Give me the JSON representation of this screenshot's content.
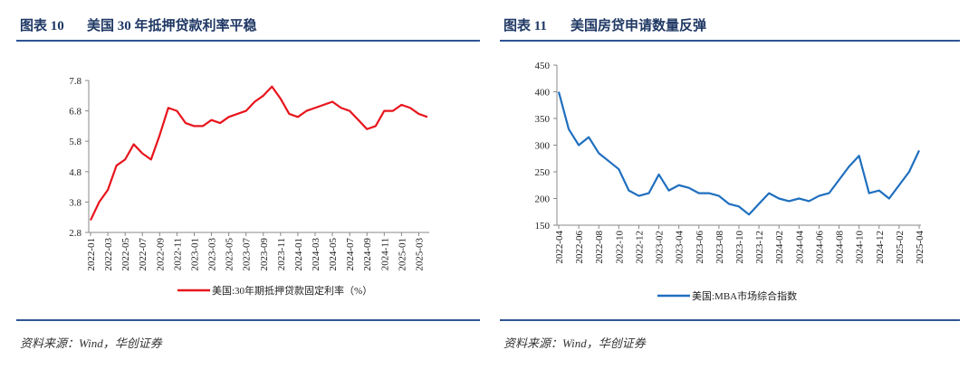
{
  "chart_data": [
    {
      "type": "line",
      "label": "图表 10",
      "title": "美国 30 年抵押贷款利率平稳",
      "source": "资料来源：Wind，华创证券",
      "categories": [
        "2022-01",
        null,
        "2022-03",
        null,
        "2022-05",
        null,
        "2022-07",
        null,
        "2022-09",
        null,
        "2022-11",
        null,
        "2023-01",
        null,
        "2023-03",
        null,
        "2023-05",
        null,
        "2023-07",
        null,
        "2023-09",
        null,
        "2023-11",
        null,
        "2024-01",
        null,
        "2024-03",
        null,
        "2024-05",
        null,
        "2024-07",
        null,
        "2024-09",
        null,
        "2024-11",
        null,
        "2025-01",
        null,
        "2025-03",
        null
      ],
      "series": [
        {
          "name": "美国:30年期抵押贷款固定利率（%）",
          "color": "#e8141c",
          "values": [
            3.2,
            3.8,
            4.2,
            5.0,
            5.2,
            5.7,
            5.4,
            5.2,
            6.0,
            6.9,
            6.8,
            6.4,
            6.3,
            6.3,
            6.5,
            6.4,
            6.6,
            6.7,
            6.8,
            7.1,
            7.3,
            7.6,
            7.2,
            6.7,
            6.6,
            6.8,
            6.9,
            7.0,
            7.1,
            6.9,
            6.8,
            6.5,
            6.2,
            6.3,
            6.8,
            6.8,
            7.0,
            6.9,
            6.7,
            6.6
          ]
        }
      ],
      "ylim": [
        2.8,
        7.8
      ],
      "yticks": [
        2.8,
        3.8,
        4.8,
        5.8,
        6.8,
        7.8
      ],
      "grid": false
    },
    {
      "type": "line",
      "label": "图表 11",
      "title": "美国房贷申请数量反弹",
      "source": "资料来源：Wind，华创证券",
      "categories": [
        "2022-04",
        null,
        "2022-06",
        null,
        "2022-08",
        null,
        "2022-10",
        null,
        "2022-12",
        null,
        "2023-02",
        null,
        "2023-04",
        null,
        "2023-06",
        null,
        "2023-08",
        null,
        "2023-10",
        null,
        "2023-12",
        null,
        "2024-02",
        null,
        "2024-04",
        null,
        "2024-06",
        null,
        "2024-08",
        null,
        "2024-10",
        null,
        "2024-12",
        null,
        "2025-02",
        null,
        "2025-04"
      ],
      "series": [
        {
          "name": "美国:MBA市场综合指数",
          "color": "#1f6fbf",
          "values": [
            400,
            330,
            300,
            315,
            285,
            270,
            255,
            215,
            205,
            210,
            245,
            215,
            225,
            220,
            210,
            210,
            205,
            190,
            185,
            170,
            190,
            210,
            200,
            195,
            200,
            195,
            205,
            210,
            235,
            260,
            280,
            210,
            215,
            200,
            225,
            250,
            290
          ]
        }
      ],
      "ylim": [
        150,
        450
      ],
      "yticks": [
        150,
        200,
        250,
        300,
        350,
        400,
        450
      ],
      "grid": false
    }
  ]
}
